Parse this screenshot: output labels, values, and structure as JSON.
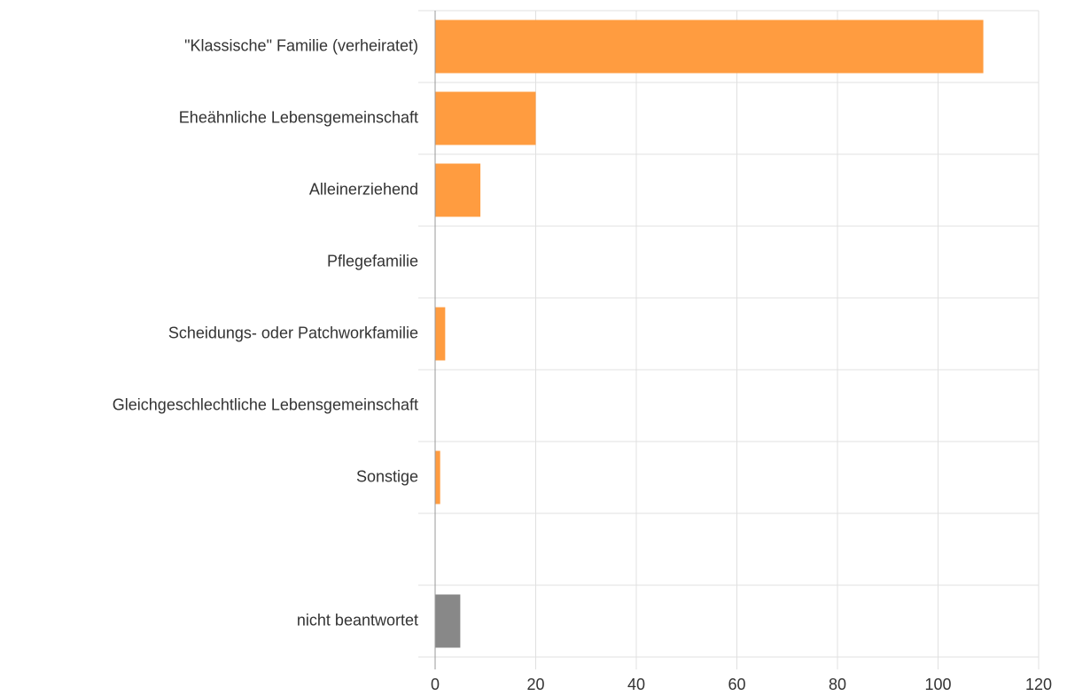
{
  "chart_data": {
    "type": "hbar",
    "categories": [
      "\"Klassische\" Familie (verheiratet)",
      "Eheähnliche Lebensgemeinschaft",
      "Alleinerziehend",
      "Pflegefamilie",
      "Scheidungs- oder Patchworkfamilie",
      "Gleichgeschlechtliche Lebensgemeinschaft",
      "Sonstige",
      null,
      "nicht beantwortet"
    ],
    "values": [
      109,
      20,
      9,
      0,
      2,
      0,
      1,
      null,
      5
    ],
    "colors": [
      "#ff9c40",
      "#ff9c40",
      "#ff9c40",
      "#ff9c40",
      "#ff9c40",
      "#ff9c40",
      "#ff9c40",
      null,
      "#888888"
    ],
    "xlim": [
      0,
      120
    ],
    "xticks": [
      0,
      20,
      40,
      60,
      80,
      100,
      120
    ],
    "grid": true
  }
}
